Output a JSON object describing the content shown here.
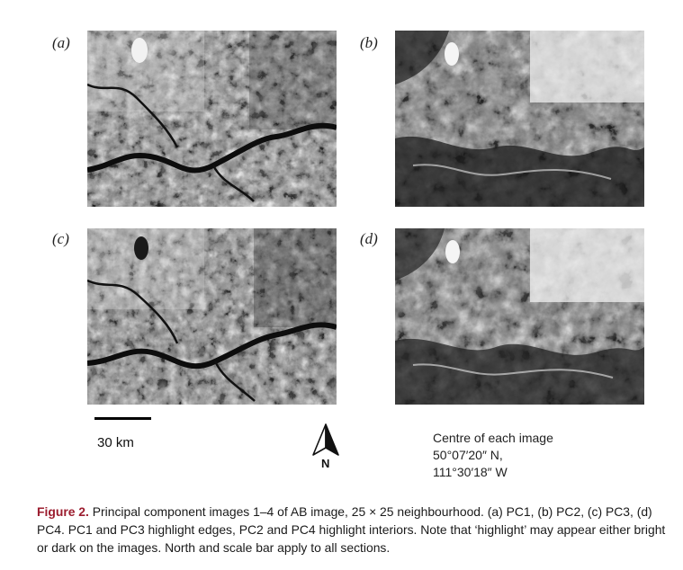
{
  "figure": {
    "panels": [
      {
        "id": "a",
        "label": "(a)"
      },
      {
        "id": "b",
        "label": "(b)"
      },
      {
        "id": "c",
        "label": "(c)"
      },
      {
        "id": "d",
        "label": "(d)"
      }
    ],
    "scale_bar_label": "30 km",
    "north_label": "N",
    "centre_info": {
      "line1": "Centre of each image",
      "line2": "50°07′20″ N,",
      "line3": "111°30′18″ W"
    },
    "caption": {
      "label": "Figure 2.",
      "text": " Principal component images 1–4 of AB image, 25 × 25 neighbourhood. (a) PC1, (b) PC2, (c) PC3, (d) PC4. PC1 and PC3 highlight edges, PC2 and PC4 highlight interiors. Note that ‘highlight’ may appear either bright or dark on the images. North and scale bar apply to all sections."
    }
  },
  "colors": {
    "caption_label": "#9b1c2e"
  }
}
